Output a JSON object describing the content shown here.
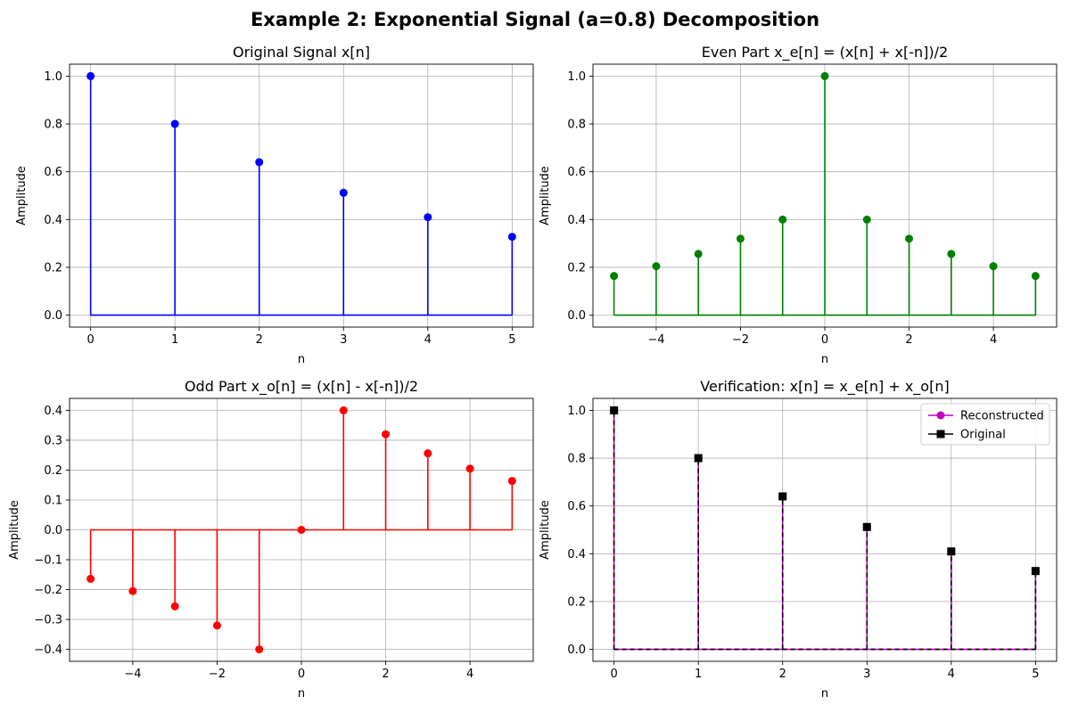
{
  "figure_title": "Example 2: Exponential Signal (a=0.8) Decomposition",
  "chart_data": [
    {
      "type": "stem",
      "title": "Original Signal x[n]",
      "xlabel": "n",
      "ylabel": "Amplitude",
      "color": "#0000ff",
      "marker": "circle",
      "x": [
        0,
        1,
        2,
        3,
        4,
        5
      ],
      "values": [
        1.0,
        0.8,
        0.64,
        0.512,
        0.4096,
        0.32768
      ],
      "xlim": [
        -0.25,
        5.25
      ],
      "ylim": [
        -0.05,
        1.05
      ],
      "xticks": [
        0,
        1,
        2,
        3,
        4,
        5
      ],
      "xtick_labels": [
        "0",
        "1",
        "2",
        "3",
        "4",
        "5"
      ],
      "yticks": [
        0.0,
        0.2,
        0.4,
        0.6,
        0.8,
        1.0
      ],
      "ytick_labels": [
        "0.0",
        "0.2",
        "0.4",
        "0.6",
        "0.8",
        "1.0"
      ],
      "grid": true
    },
    {
      "type": "stem",
      "title": "Even Part x_e[n] = (x[n] + x[-n])/2",
      "xlabel": "n",
      "ylabel": "Amplitude",
      "color": "#008000",
      "marker": "circle",
      "x": [
        -5,
        -4,
        -3,
        -2,
        -1,
        0,
        1,
        2,
        3,
        4,
        5
      ],
      "values": [
        0.16384,
        0.2048,
        0.256,
        0.32,
        0.4,
        1.0,
        0.4,
        0.32,
        0.256,
        0.2048,
        0.16384
      ],
      "xlim": [
        -5.5,
        5.5
      ],
      "ylim": [
        -0.05,
        1.05
      ],
      "xticks": [
        -4,
        -2,
        0,
        2,
        4
      ],
      "xtick_labels": [
        "−4",
        "−2",
        "0",
        "2",
        "4"
      ],
      "yticks": [
        0.0,
        0.2,
        0.4,
        0.6,
        0.8,
        1.0
      ],
      "ytick_labels": [
        "0.0",
        "0.2",
        "0.4",
        "0.6",
        "0.8",
        "1.0"
      ],
      "grid": true
    },
    {
      "type": "stem",
      "title": "Odd Part x_o[n] = (x[n] - x[-n])/2",
      "xlabel": "n",
      "ylabel": "Amplitude",
      "color": "#ff0000",
      "marker": "circle",
      "x": [
        -5,
        -4,
        -3,
        -2,
        -1,
        0,
        1,
        2,
        3,
        4,
        5
      ],
      "values": [
        -0.16384,
        -0.2048,
        -0.256,
        -0.32,
        -0.4,
        0.0,
        0.4,
        0.32,
        0.256,
        0.2048,
        0.16384
      ],
      "xlim": [
        -5.5,
        5.5
      ],
      "ylim": [
        -0.44,
        0.44
      ],
      "xticks": [
        -4,
        -2,
        0,
        2,
        4
      ],
      "xtick_labels": [
        "−4",
        "−2",
        "0",
        "2",
        "4"
      ],
      "yticks": [
        -0.4,
        -0.3,
        -0.2,
        -0.1,
        0.0,
        0.1,
        0.2,
        0.3,
        0.4
      ],
      "ytick_labels": [
        "−0.4",
        "−0.3",
        "−0.2",
        "−0.1",
        "0.0",
        "0.1",
        "0.2",
        "0.3",
        "0.4"
      ],
      "grid": true
    },
    {
      "type": "stem",
      "title": "Verification: x[n] = x_e[n] + x_o[n]",
      "xlabel": "n",
      "ylabel": "Amplitude",
      "x": [
        0,
        1,
        2,
        3,
        4,
        5
      ],
      "series": [
        {
          "name": "Reconstructed",
          "color": "#bf00bf",
          "marker": "circle",
          "linestyle": "solid",
          "values": [
            1.0,
            0.8,
            0.64,
            0.512,
            0.4096,
            0.32768
          ]
        },
        {
          "name": "Original",
          "color": "#000000",
          "marker": "square",
          "linestyle": "dashed",
          "values": [
            1.0,
            0.8,
            0.64,
            0.512,
            0.4096,
            0.32768
          ]
        }
      ],
      "legend": "top-right",
      "xlim": [
        -0.25,
        5.25
      ],
      "ylim": [
        -0.05,
        1.05
      ],
      "xticks": [
        0,
        1,
        2,
        3,
        4,
        5
      ],
      "xtick_labels": [
        "0",
        "1",
        "2",
        "3",
        "4",
        "5"
      ],
      "yticks": [
        0.0,
        0.2,
        0.4,
        0.6,
        0.8,
        1.0
      ],
      "ytick_labels": [
        "0.0",
        "0.2",
        "0.4",
        "0.6",
        "0.8",
        "1.0"
      ],
      "grid": true
    }
  ]
}
